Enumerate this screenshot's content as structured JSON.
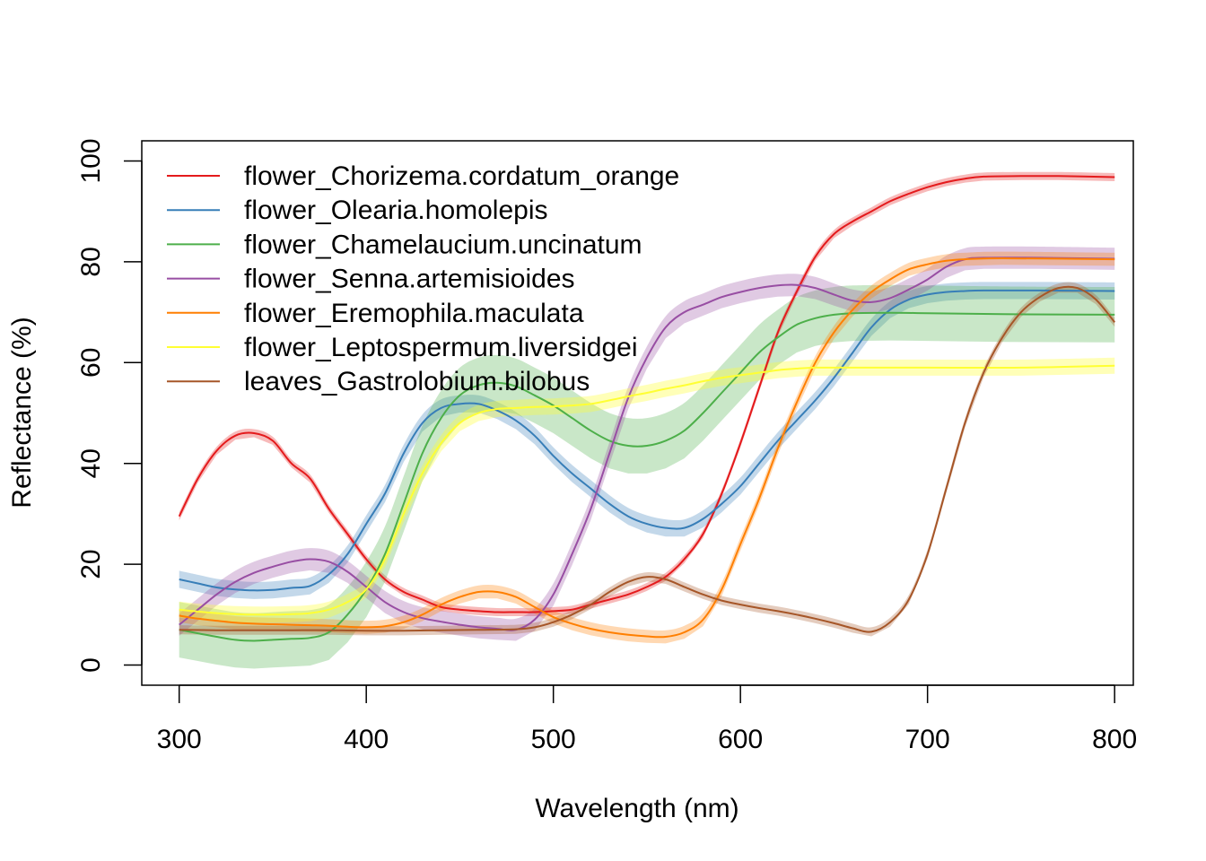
{
  "chart_data": {
    "type": "line",
    "xlabel": "Wavelength (nm)",
    "ylabel": "Reflectance (%)",
    "xlim": [
      280,
      810
    ],
    "ylim": [
      -4,
      104
    ],
    "xticks": [
      "300",
      "400",
      "500",
      "600",
      "700",
      "800"
    ],
    "yticks": [
      "0",
      "20",
      "40",
      "60",
      "80",
      "100"
    ],
    "legend_position": "top-left",
    "grid": false,
    "shaded_band": "variability around each mean curve",
    "series": [
      {
        "name": "flower_Chorizema.cordatum_orange",
        "color": "#e41a1c",
        "band_halfwidth": 0.8,
        "points": [
          [
            300,
            29.5
          ],
          [
            310,
            37
          ],
          [
            320,
            42.5
          ],
          [
            330,
            45.5
          ],
          [
            340,
            46
          ],
          [
            350,
            44.5
          ],
          [
            360,
            40
          ],
          [
            370,
            37
          ],
          [
            380,
            31
          ],
          [
            390,
            26
          ],
          [
            400,
            21
          ],
          [
            410,
            17
          ],
          [
            420,
            14.5
          ],
          [
            430,
            13
          ],
          [
            440,
            11.5
          ],
          [
            450,
            11
          ],
          [
            460,
            10.7
          ],
          [
            470,
            10.5
          ],
          [
            480,
            10.5
          ],
          [
            490,
            10.5
          ],
          [
            500,
            10.7
          ],
          [
            510,
            11
          ],
          [
            520,
            12
          ],
          [
            530,
            13
          ],
          [
            540,
            14
          ],
          [
            550,
            15.5
          ],
          [
            560,
            17.5
          ],
          [
            570,
            21
          ],
          [
            580,
            26
          ],
          [
            590,
            34
          ],
          [
            600,
            44
          ],
          [
            610,
            55
          ],
          [
            620,
            66
          ],
          [
            630,
            74
          ],
          [
            640,
            81
          ],
          [
            650,
            85.5
          ],
          [
            660,
            88
          ],
          [
            670,
            90
          ],
          [
            680,
            92
          ],
          [
            690,
            93.5
          ],
          [
            700,
            94.8
          ],
          [
            710,
            95.8
          ],
          [
            720,
            96.5
          ],
          [
            730,
            96.9
          ],
          [
            750,
            97
          ],
          [
            770,
            97
          ],
          [
            800,
            96.8
          ]
        ]
      },
      {
        "name": "flower_Olearia.homolepis",
        "color": "#377eb8",
        "band_halfwidth": 1.7,
        "points": [
          [
            300,
            17
          ],
          [
            310,
            16.2
          ],
          [
            320,
            15.4
          ],
          [
            330,
            15
          ],
          [
            340,
            14.8
          ],
          [
            350,
            14.9
          ],
          [
            360,
            15.3
          ],
          [
            370,
            15.7
          ],
          [
            380,
            18
          ],
          [
            390,
            22
          ],
          [
            400,
            28
          ],
          [
            410,
            34
          ],
          [
            420,
            42
          ],
          [
            430,
            48
          ],
          [
            440,
            51
          ],
          [
            450,
            51.8
          ],
          [
            460,
            51.8
          ],
          [
            470,
            50.5
          ],
          [
            480,
            48.5
          ],
          [
            490,
            45.5
          ],
          [
            500,
            41.5
          ],
          [
            510,
            38
          ],
          [
            520,
            35
          ],
          [
            530,
            32
          ],
          [
            540,
            29.5
          ],
          [
            550,
            28
          ],
          [
            560,
            27.2
          ],
          [
            570,
            27.2
          ],
          [
            580,
            29
          ],
          [
            590,
            32
          ],
          [
            600,
            35.5
          ],
          [
            610,
            40
          ],
          [
            620,
            44.5
          ],
          [
            630,
            48.5
          ],
          [
            640,
            52.5
          ],
          [
            650,
            57
          ],
          [
            660,
            62
          ],
          [
            670,
            67
          ],
          [
            680,
            70.5
          ],
          [
            690,
            72.5
          ],
          [
            700,
            73.5
          ],
          [
            710,
            74
          ],
          [
            720,
            74.2
          ],
          [
            730,
            74.3
          ],
          [
            760,
            74.3
          ],
          [
            800,
            74.2
          ]
        ]
      },
      {
        "name": "flower_Chamelaucium.uncinatum",
        "color": "#4daf4a",
        "band_halfwidth": 5.5,
        "points": [
          [
            300,
            7
          ],
          [
            310,
            6.3
          ],
          [
            320,
            5.6
          ],
          [
            330,
            5
          ],
          [
            340,
            4.8
          ],
          [
            350,
            5
          ],
          [
            360,
            5.2
          ],
          [
            370,
            5.4
          ],
          [
            380,
            6.5
          ],
          [
            390,
            10
          ],
          [
            400,
            15
          ],
          [
            410,
            22
          ],
          [
            420,
            32
          ],
          [
            430,
            42
          ],
          [
            440,
            49
          ],
          [
            450,
            53.5
          ],
          [
            460,
            55.5
          ],
          [
            470,
            56
          ],
          [
            480,
            55.3
          ],
          [
            490,
            53.5
          ],
          [
            500,
            51.5
          ],
          [
            510,
            49
          ],
          [
            520,
            46.5
          ],
          [
            530,
            44.5
          ],
          [
            540,
            43.5
          ],
          [
            550,
            43.5
          ],
          [
            560,
            44.5
          ],
          [
            570,
            46.5
          ],
          [
            580,
            50
          ],
          [
            590,
            54
          ],
          [
            600,
            58
          ],
          [
            610,
            62
          ],
          [
            620,
            65
          ],
          [
            630,
            67.5
          ],
          [
            640,
            68.8
          ],
          [
            650,
            69.5
          ],
          [
            660,
            69.8
          ],
          [
            680,
            69.9
          ],
          [
            700,
            69.8
          ],
          [
            740,
            69.6
          ],
          [
            800,
            69.5
          ]
        ]
      },
      {
        "name": "flower_Senna.artemisioides",
        "color": "#984ea3",
        "band_halfwidth": 2.2,
        "points": [
          [
            300,
            8
          ],
          [
            310,
            11
          ],
          [
            320,
            14
          ],
          [
            330,
            16.5
          ],
          [
            340,
            18.3
          ],
          [
            350,
            19.5
          ],
          [
            360,
            20.5
          ],
          [
            370,
            21
          ],
          [
            380,
            20.5
          ],
          [
            390,
            18.5
          ],
          [
            400,
            15.5
          ],
          [
            410,
            12.5
          ],
          [
            420,
            10.5
          ],
          [
            430,
            9.3
          ],
          [
            440,
            8.6
          ],
          [
            450,
            8
          ],
          [
            460,
            7.5
          ],
          [
            470,
            7.2
          ],
          [
            480,
            7
          ],
          [
            490,
            9
          ],
          [
            500,
            14
          ],
          [
            510,
            22
          ],
          [
            520,
            31
          ],
          [
            530,
            42
          ],
          [
            540,
            53
          ],
          [
            550,
            61
          ],
          [
            560,
            67
          ],
          [
            570,
            70
          ],
          [
            580,
            71.5
          ],
          [
            590,
            73
          ],
          [
            600,
            74
          ],
          [
            610,
            74.8
          ],
          [
            620,
            75.3
          ],
          [
            630,
            75.4
          ],
          [
            640,
            74.8
          ],
          [
            650,
            73.5
          ],
          [
            660,
            72.3
          ],
          [
            670,
            72
          ],
          [
            680,
            72.8
          ],
          [
            690,
            74.5
          ],
          [
            700,
            76.5
          ],
          [
            710,
            79
          ],
          [
            720,
            80.5
          ],
          [
            730,
            80.8
          ],
          [
            760,
            80.8
          ],
          [
            800,
            80.6
          ]
        ]
      },
      {
        "name": "flower_Eremophila.maculata",
        "color": "#ff7f00",
        "band_halfwidth": 1.3,
        "points": [
          [
            300,
            9.8
          ],
          [
            310,
            9.2
          ],
          [
            320,
            8.8
          ],
          [
            330,
            8.4
          ],
          [
            340,
            8.2
          ],
          [
            350,
            8.1
          ],
          [
            360,
            8
          ],
          [
            370,
            7.9
          ],
          [
            380,
            7.8
          ],
          [
            390,
            7.6
          ],
          [
            400,
            7.5
          ],
          [
            410,
            7.7
          ],
          [
            420,
            8.5
          ],
          [
            430,
            10
          ],
          [
            440,
            12
          ],
          [
            450,
            13.5
          ],
          [
            460,
            14.5
          ],
          [
            470,
            14.5
          ],
          [
            480,
            13.5
          ],
          [
            490,
            11.5
          ],
          [
            500,
            9.5
          ],
          [
            510,
            8.2
          ],
          [
            520,
            7.2
          ],
          [
            530,
            6.5
          ],
          [
            540,
            6
          ],
          [
            550,
            5.7
          ],
          [
            560,
            5.6
          ],
          [
            570,
            6.5
          ],
          [
            580,
            9
          ],
          [
            590,
            15
          ],
          [
            600,
            24
          ],
          [
            610,
            33
          ],
          [
            620,
            43
          ],
          [
            630,
            52
          ],
          [
            640,
            60
          ],
          [
            650,
            66
          ],
          [
            660,
            70.5
          ],
          [
            670,
            74
          ],
          [
            680,
            76.5
          ],
          [
            690,
            78.5
          ],
          [
            700,
            79.5
          ],
          [
            710,
            80.2
          ],
          [
            720,
            80.5
          ],
          [
            740,
            80.7
          ],
          [
            800,
            80.5
          ]
        ]
      },
      {
        "name": "flower_Leptospermum.liversidgei",
        "color": "#ffff33",
        "band_halfwidth": 1.6,
        "points": [
          [
            300,
            11
          ],
          [
            310,
            10.6
          ],
          [
            320,
            10.3
          ],
          [
            330,
            10.1
          ],
          [
            340,
            10
          ],
          [
            350,
            10
          ],
          [
            360,
            10.1
          ],
          [
            370,
            10.3
          ],
          [
            380,
            11
          ],
          [
            390,
            12.5
          ],
          [
            400,
            15
          ],
          [
            410,
            21
          ],
          [
            420,
            30
          ],
          [
            430,
            38
          ],
          [
            440,
            44
          ],
          [
            450,
            48
          ],
          [
            460,
            50
          ],
          [
            470,
            50.8
          ],
          [
            480,
            51
          ],
          [
            490,
            51.2
          ],
          [
            500,
            51.3
          ],
          [
            510,
            51.5
          ],
          [
            520,
            51.8
          ],
          [
            530,
            52.5
          ],
          [
            540,
            53.3
          ],
          [
            550,
            54
          ],
          [
            560,
            54.8
          ],
          [
            570,
            55.5
          ],
          [
            580,
            56.3
          ],
          [
            590,
            57
          ],
          [
            600,
            57.5
          ],
          [
            610,
            58
          ],
          [
            620,
            58.5
          ],
          [
            630,
            58.8
          ],
          [
            640,
            59
          ],
          [
            650,
            59
          ],
          [
            700,
            59
          ],
          [
            750,
            59
          ],
          [
            800,
            59.4
          ]
        ]
      },
      {
        "name": "leaves_Gastrolobium.bilobus",
        "color": "#a65628",
        "band_halfwidth": 0.9,
        "points": [
          [
            300,
            7
          ],
          [
            320,
            6.9
          ],
          [
            340,
            6.9
          ],
          [
            360,
            6.9
          ],
          [
            380,
            6.9
          ],
          [
            400,
            6.8
          ],
          [
            420,
            6.8
          ],
          [
            440,
            6.9
          ],
          [
            460,
            7
          ],
          [
            480,
            7.1
          ],
          [
            490,
            7.5
          ],
          [
            500,
            8.5
          ],
          [
            510,
            10
          ],
          [
            520,
            12
          ],
          [
            530,
            14.5
          ],
          [
            540,
            16.5
          ],
          [
            550,
            17.5
          ],
          [
            560,
            17
          ],
          [
            570,
            15.5
          ],
          [
            580,
            14
          ],
          [
            590,
            12.8
          ],
          [
            600,
            12
          ],
          [
            610,
            11.3
          ],
          [
            620,
            10.7
          ],
          [
            630,
            10
          ],
          [
            640,
            9.2
          ],
          [
            650,
            8.3
          ],
          [
            660,
            7.3
          ],
          [
            670,
            6.6
          ],
          [
            680,
            8.5
          ],
          [
            690,
            13
          ],
          [
            700,
            22
          ],
          [
            710,
            35
          ],
          [
            720,
            48
          ],
          [
            730,
            58
          ],
          [
            740,
            65
          ],
          [
            750,
            70
          ],
          [
            760,
            73
          ],
          [
            770,
            74.8
          ],
          [
            780,
            74.8
          ],
          [
            790,
            72.5
          ],
          [
            800,
            68
          ]
        ]
      }
    ]
  }
}
